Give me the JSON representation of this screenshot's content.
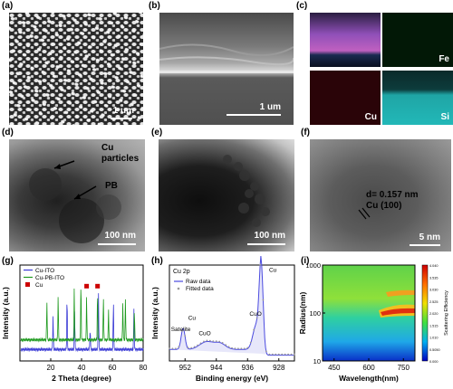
{
  "figure": {
    "panels": {
      "a": {
        "label": "(a)",
        "scale_bar": "1 um"
      },
      "b": {
        "label": "(b)",
        "scale_bar": "1 um"
      },
      "c": {
        "label": "(c)",
        "maps": [
          "",
          "Fe",
          "Cu",
          "Si"
        ]
      },
      "d": {
        "label": "(d)",
        "annotations": [
          "Cu",
          "particles",
          "PB"
        ],
        "scale_bar": "100 nm"
      },
      "e": {
        "label": "(e)",
        "scale_bar": "100 nm"
      },
      "f": {
        "label": "(f)",
        "annotations": [
          "d= 0.157 nm",
          "Cu (100)"
        ],
        "scale_bar": "5 nm"
      },
      "g": {
        "label": "(g)"
      },
      "h": {
        "label": "(h)"
      },
      "i": {
        "label": "(i)"
      }
    }
  },
  "chart_data": [
    {
      "panel": "g",
      "type": "line",
      "xlabel": "2 Theta (degree)",
      "ylabel": "Intensity (a.u.)",
      "xlim": [
        0,
        80
      ],
      "xticks": [
        "20",
        "40",
        "60",
        "80"
      ],
      "legend": [
        "Cu-ITO",
        "Cu-PB-ITO",
        "Cu"
      ],
      "legend_position": "top-left",
      "series": [
        {
          "name": "Cu-ITO",
          "color": "#3b3bd6",
          "peaks": [
            [
              21.5,
              0.35
            ],
            [
              30.6,
              0.55
            ],
            [
              35.5,
              0.4
            ],
            [
              45.6,
              0.22
            ],
            [
              51.0,
              0.6
            ],
            [
              60.7,
              0.5
            ],
            [
              74.0,
              0.42
            ]
          ],
          "baseline": 0.12
        },
        {
          "name": "Cu-PB-ITO",
          "color": "#1f9a1f",
          "peaks": [
            [
              17.5,
              0.4
            ],
            [
              24.8,
              0.48
            ],
            [
              35.3,
              0.55
            ],
            [
              39.6,
              0.6
            ],
            [
              43.3,
              0.45
            ],
            [
              50.4,
              0.5
            ],
            [
              54.2,
              0.45
            ],
            [
              57.5,
              0.3
            ],
            [
              66.8,
              0.4
            ],
            [
              68.5,
              0.42
            ],
            [
              74.3,
              0.3
            ]
          ],
          "baseline": 0.22
        }
      ],
      "markers": {
        "name": "Cu",
        "color": "#cc0000",
        "x": [
          43.3,
          50.4
        ]
      }
    },
    {
      "panel": "h",
      "type": "line",
      "title": "Cu 2p",
      "xlabel": "Binding energy (eV)",
      "ylabel": "Intensity (a.u.)",
      "xlim": [
        956,
        924
      ],
      "xticks": [
        "952",
        "944",
        "936",
        "928"
      ],
      "legend": [
        "Raw data",
        "Fitted data"
      ],
      "annotations": [
        "Cu",
        "Satelite",
        "Cu",
        "CuO",
        "CuO"
      ]
    },
    {
      "panel": "i",
      "type": "heatmap",
      "xlabel": "Wavelength(nm)",
      "ylabel": "Radius(nm)",
      "xlim": [
        400,
        800
      ],
      "xticks": [
        "450",
        "600",
        "750"
      ],
      "ylim": [
        10,
        1000
      ],
      "yscale": "log",
      "yticks": [
        "10",
        "100",
        "1000"
      ],
      "colorbar_label": "Scattering Efficiency",
      "colorbar_ticks": [
        "4.040",
        "3.535",
        "3.030",
        "2.525",
        "2.020",
        "1.515",
        "1.010",
        "0.5050",
        "0.000"
      ]
    }
  ]
}
